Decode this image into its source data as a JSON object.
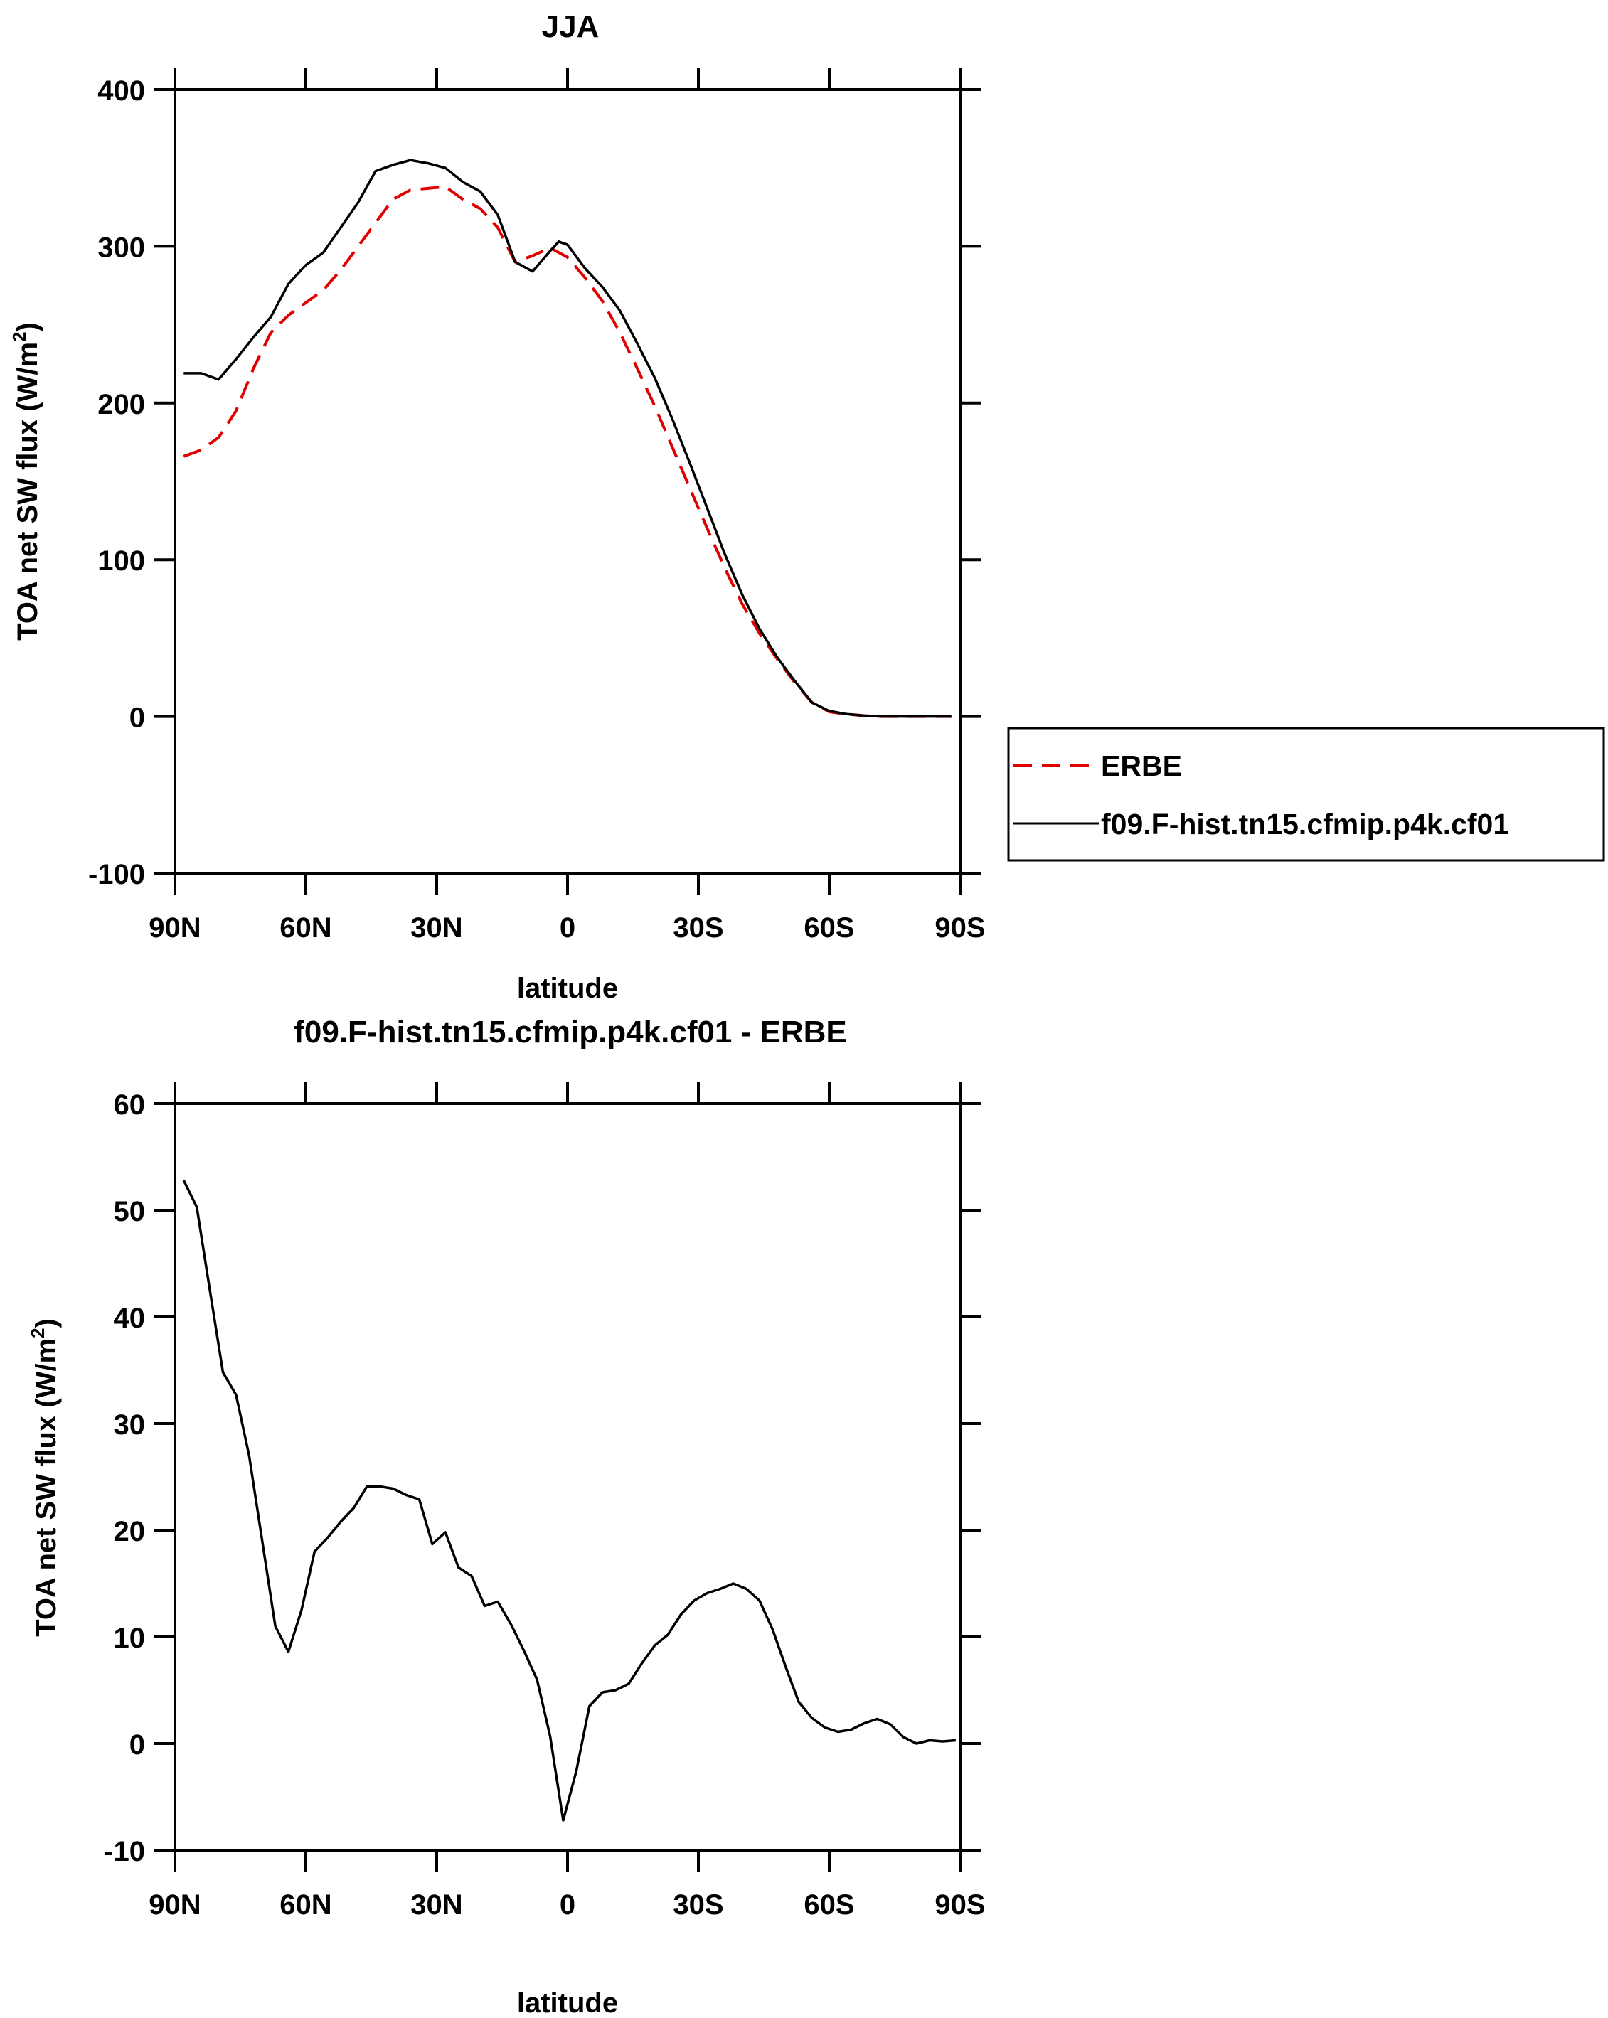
{
  "chart_data": [
    {
      "type": "line",
      "title": "JJA",
      "xlabel": "latitude",
      "ylabel": "TOA net SW flux (W/m",
      "ylabel_sup": "2",
      "ylabel_end": ")",
      "xlim": [
        90,
        -90
      ],
      "ylim": [
        -100,
        400
      ],
      "xticks": [
        90,
        60,
        30,
        0,
        -30,
        -60,
        -90
      ],
      "xtick_labels": [
        "90N",
        "60N",
        "30N",
        "0",
        "30S",
        "60S",
        "90S"
      ],
      "yticks": [
        -100,
        0,
        100,
        200,
        300,
        400
      ],
      "ytick_labels": [
        "-100",
        "0",
        "100",
        "200",
        "300",
        "400"
      ],
      "legend_position": "right",
      "series": [
        {
          "name": "ERBE",
          "color": "#e00000",
          "dash": "dashed",
          "x": [
            88,
            84,
            80,
            76,
            72,
            68,
            64,
            60,
            56,
            52,
            48,
            44,
            40,
            36,
            32,
            28,
            24,
            20,
            16,
            12,
            8,
            4,
            0,
            -4,
            -8,
            -12,
            -16,
            -20,
            -24,
            -28,
            -32,
            -36,
            -40,
            -44,
            -48,
            -52,
            -56,
            -60,
            -64,
            -68,
            -72,
            -76,
            -80,
            -84,
            -88
          ],
          "y": [
            166,
            170,
            178,
            195,
            222,
            245,
            256,
            264,
            272,
            285,
            300,
            315,
            330,
            336,
            337,
            338,
            330,
            324,
            312,
            290,
            294,
            299,
            293,
            280,
            265,
            245,
            222,
            198,
            172,
            146,
            120,
            95,
            72,
            53,
            37,
            22,
            9,
            3,
            1.5,
            0.5,
            0,
            0,
            0,
            0,
            0
          ]
        },
        {
          "name": "f09.F-hist.tn15.cfmip.p4k.cf01",
          "color": "#000000",
          "dash": "solid",
          "x": [
            88,
            84,
            80,
            76,
            72,
            68,
            64,
            60,
            56,
            52,
            48,
            44,
            40,
            36,
            32,
            28,
            24,
            20,
            16,
            12,
            8,
            4,
            2,
            0,
            -4,
            -8,
            -12,
            -16,
            -20,
            -24,
            -28,
            -32,
            -36,
            -40,
            -44,
            -48,
            -52,
            -56,
            -60,
            -64,
            -68,
            -72,
            -76,
            -80,
            -84,
            -88
          ],
          "y": [
            219,
            219,
            215,
            228,
            242,
            255,
            276,
            288,
            296,
            312,
            328,
            348,
            352,
            355,
            353,
            350,
            341,
            335,
            320,
            290,
            284,
            297,
            303,
            301,
            286,
            274,
            259,
            238,
            216,
            190,
            162,
            133,
            104,
            78,
            56,
            38,
            23,
            9,
            3.5,
            1.5,
            0.5,
            0,
            0,
            0,
            0,
            0
          ]
        }
      ]
    },
    {
      "type": "line",
      "title": "f09.F-hist.tn15.cfmip.p4k.cf01 - ERBE",
      "xlabel": "latitude",
      "ylabel": "TOA net SW flux (W/m",
      "ylabel_sup": "2",
      "ylabel_end": ")",
      "xlim": [
        90,
        -90
      ],
      "ylim": [
        -10,
        60
      ],
      "xticks": [
        90,
        60,
        30,
        0,
        -30,
        -60,
        -90
      ],
      "xtick_labels": [
        "90N",
        "60N",
        "30N",
        "0",
        "30S",
        "60S",
        "90S"
      ],
      "yticks": [
        -10,
        0,
        10,
        20,
        30,
        40,
        50,
        60
      ],
      "ytick_labels": [
        "-10",
        "0",
        "10",
        "20",
        "30",
        "40",
        "50",
        "60"
      ],
      "series": [
        {
          "name": "f09.F-hist.tn15.cfmip.p4k.cf01 - ERBE",
          "color": "#000000",
          "dash": "solid",
          "x": [
            88,
            85,
            82,
            79,
            76,
            73,
            70,
            67,
            64,
            61,
            58,
            55,
            52,
            49,
            46,
            43,
            40,
            37,
            34,
            31,
            28,
            25,
            22,
            19,
            16,
            13,
            10,
            7,
            4,
            1,
            -2,
            -5,
            -8,
            -11,
            -14,
            -17,
            -20,
            -23,
            -26,
            -29,
            -32,
            -35,
            -38,
            -41,
            -44,
            -47,
            -50,
            -53,
            -56,
            -59,
            -62,
            -65,
            -68,
            -71,
            -74,
            -77,
            -80,
            -83,
            -86,
            -89
          ],
          "y": [
            52.8,
            50.3,
            42.5,
            34.8,
            32.7,
            27,
            19,
            11,
            8.6,
            12.5,
            18,
            19.3,
            20.8,
            22.1,
            24.1,
            24.1,
            23.9,
            23.3,
            22.9,
            18.7,
            19.8,
            16.5,
            15.7,
            12.9,
            13.3,
            11.2,
            8.7,
            6,
            0.7,
            -7.2,
            -2.6,
            3.5,
            4.8,
            5,
            5.6,
            7.5,
            9.2,
            10.2,
            12.1,
            13.4,
            14.1,
            14.5,
            15,
            14.5,
            13.4,
            10.7,
            7.2,
            3.9,
            2.4,
            1.5,
            1.1,
            1.3,
            1.9,
            2.3,
            1.8,
            0.6,
            0,
            0.3,
            0.2,
            0.3
          ]
        }
      ]
    }
  ]
}
